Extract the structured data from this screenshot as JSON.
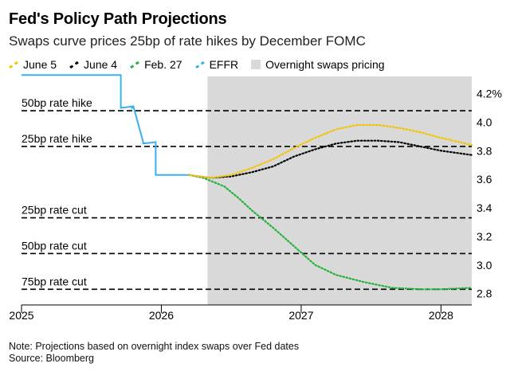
{
  "header": {
    "title": "Fed's Policy Path Projections",
    "subtitle": "Swaps curve prices 25bp of rate hikes by December FOMC"
  },
  "legend": {
    "items": [
      {
        "label": "June 5",
        "color": "#f5c400",
        "kind": "dash"
      },
      {
        "label": "June 4",
        "color": "#000000",
        "kind": "dash"
      },
      {
        "label": "Feb. 27",
        "color": "#22b33a",
        "kind": "dash"
      },
      {
        "label": "EFFR",
        "color": "#3ab0ef",
        "kind": "dash"
      },
      {
        "label": "Overnight swaps pricing",
        "color": "#d9d9d9",
        "kind": "box"
      }
    ]
  },
  "footer": {
    "note": "Note: Projections based on overnight index swaps over Fed dates",
    "source": "Source: Bloomberg"
  },
  "chart_data": {
    "type": "line",
    "x_axis": {
      "min": 2025.0,
      "max": 2028.22,
      "ticks": [
        2025,
        2026,
        2027,
        2028
      ],
      "tick_labels": [
        "2025",
        "2026",
        "2027",
        "2028"
      ]
    },
    "y_axis": {
      "min": 2.72,
      "max": 4.32,
      "ticks": [
        2.8,
        3.0,
        3.2,
        3.4,
        3.6,
        3.8,
        4.0,
        4.2
      ],
      "tick_labels": [
        "2.8",
        "3.0",
        "3.2",
        "3.4",
        "3.6",
        "3.8",
        "4.0",
        "4.2%"
      ],
      "position": "right"
    },
    "shaded_region": {
      "label": "Overnight swaps pricing",
      "x_start": 2026.33,
      "x_end": 2028.22
    },
    "reference_lines": [
      {
        "label": "50bp rate hike",
        "y": 4.08
      },
      {
        "label": "25bp rate hike",
        "y": 3.83
      },
      {
        "label": "25bp rate cut",
        "y": 3.33
      },
      {
        "label": "50bp rate cut",
        "y": 3.08
      },
      {
        "label": "75bp rate cut",
        "y": 2.83
      }
    ],
    "series": [
      {
        "name": "EFFR",
        "color": "#3ab0ef",
        "style": "solid",
        "x": [
          2025.0,
          2025.71,
          2025.71,
          2025.79,
          2025.79,
          2025.8,
          2025.8,
          2025.87,
          2025.87,
          2025.96,
          2025.96,
          2026.2
        ],
        "y": [
          4.33,
          4.33,
          4.1,
          4.11,
          4.1,
          4.11,
          4.11,
          3.86,
          3.85,
          3.86,
          3.63,
          3.63
        ]
      },
      {
        "name": "Feb. 27",
        "color": "#22b33a",
        "style": "dotted",
        "x": [
          2026.2,
          2026.3,
          2026.45,
          2026.55,
          2026.65,
          2026.8,
          2026.95,
          2027.1,
          2027.25,
          2027.45,
          2027.65,
          2027.85,
          2028.0,
          2028.22
        ],
        "y": [
          3.63,
          3.61,
          3.55,
          3.47,
          3.38,
          3.26,
          3.13,
          3.0,
          2.93,
          2.88,
          2.84,
          2.83,
          2.83,
          2.84
        ]
      },
      {
        "name": "June 4",
        "color": "#000000",
        "style": "dotted",
        "x": [
          2026.2,
          2026.35,
          2026.5,
          2026.65,
          2026.8,
          2026.95,
          2027.1,
          2027.25,
          2027.4,
          2027.55,
          2027.7,
          2027.85,
          2028.0,
          2028.22
        ],
        "y": [
          3.63,
          3.61,
          3.62,
          3.65,
          3.69,
          3.76,
          3.81,
          3.85,
          3.87,
          3.87,
          3.86,
          3.83,
          3.8,
          3.77
        ]
      },
      {
        "name": "June 5",
        "color": "#f5c400",
        "style": "dotted",
        "x": [
          2026.2,
          2026.35,
          2026.5,
          2026.65,
          2026.8,
          2026.95,
          2027.1,
          2027.25,
          2027.4,
          2027.55,
          2027.7,
          2027.85,
          2028.0,
          2028.22
        ],
        "y": [
          3.63,
          3.61,
          3.63,
          3.68,
          3.74,
          3.82,
          3.89,
          3.95,
          3.98,
          3.98,
          3.96,
          3.93,
          3.89,
          3.84
        ]
      }
    ]
  }
}
